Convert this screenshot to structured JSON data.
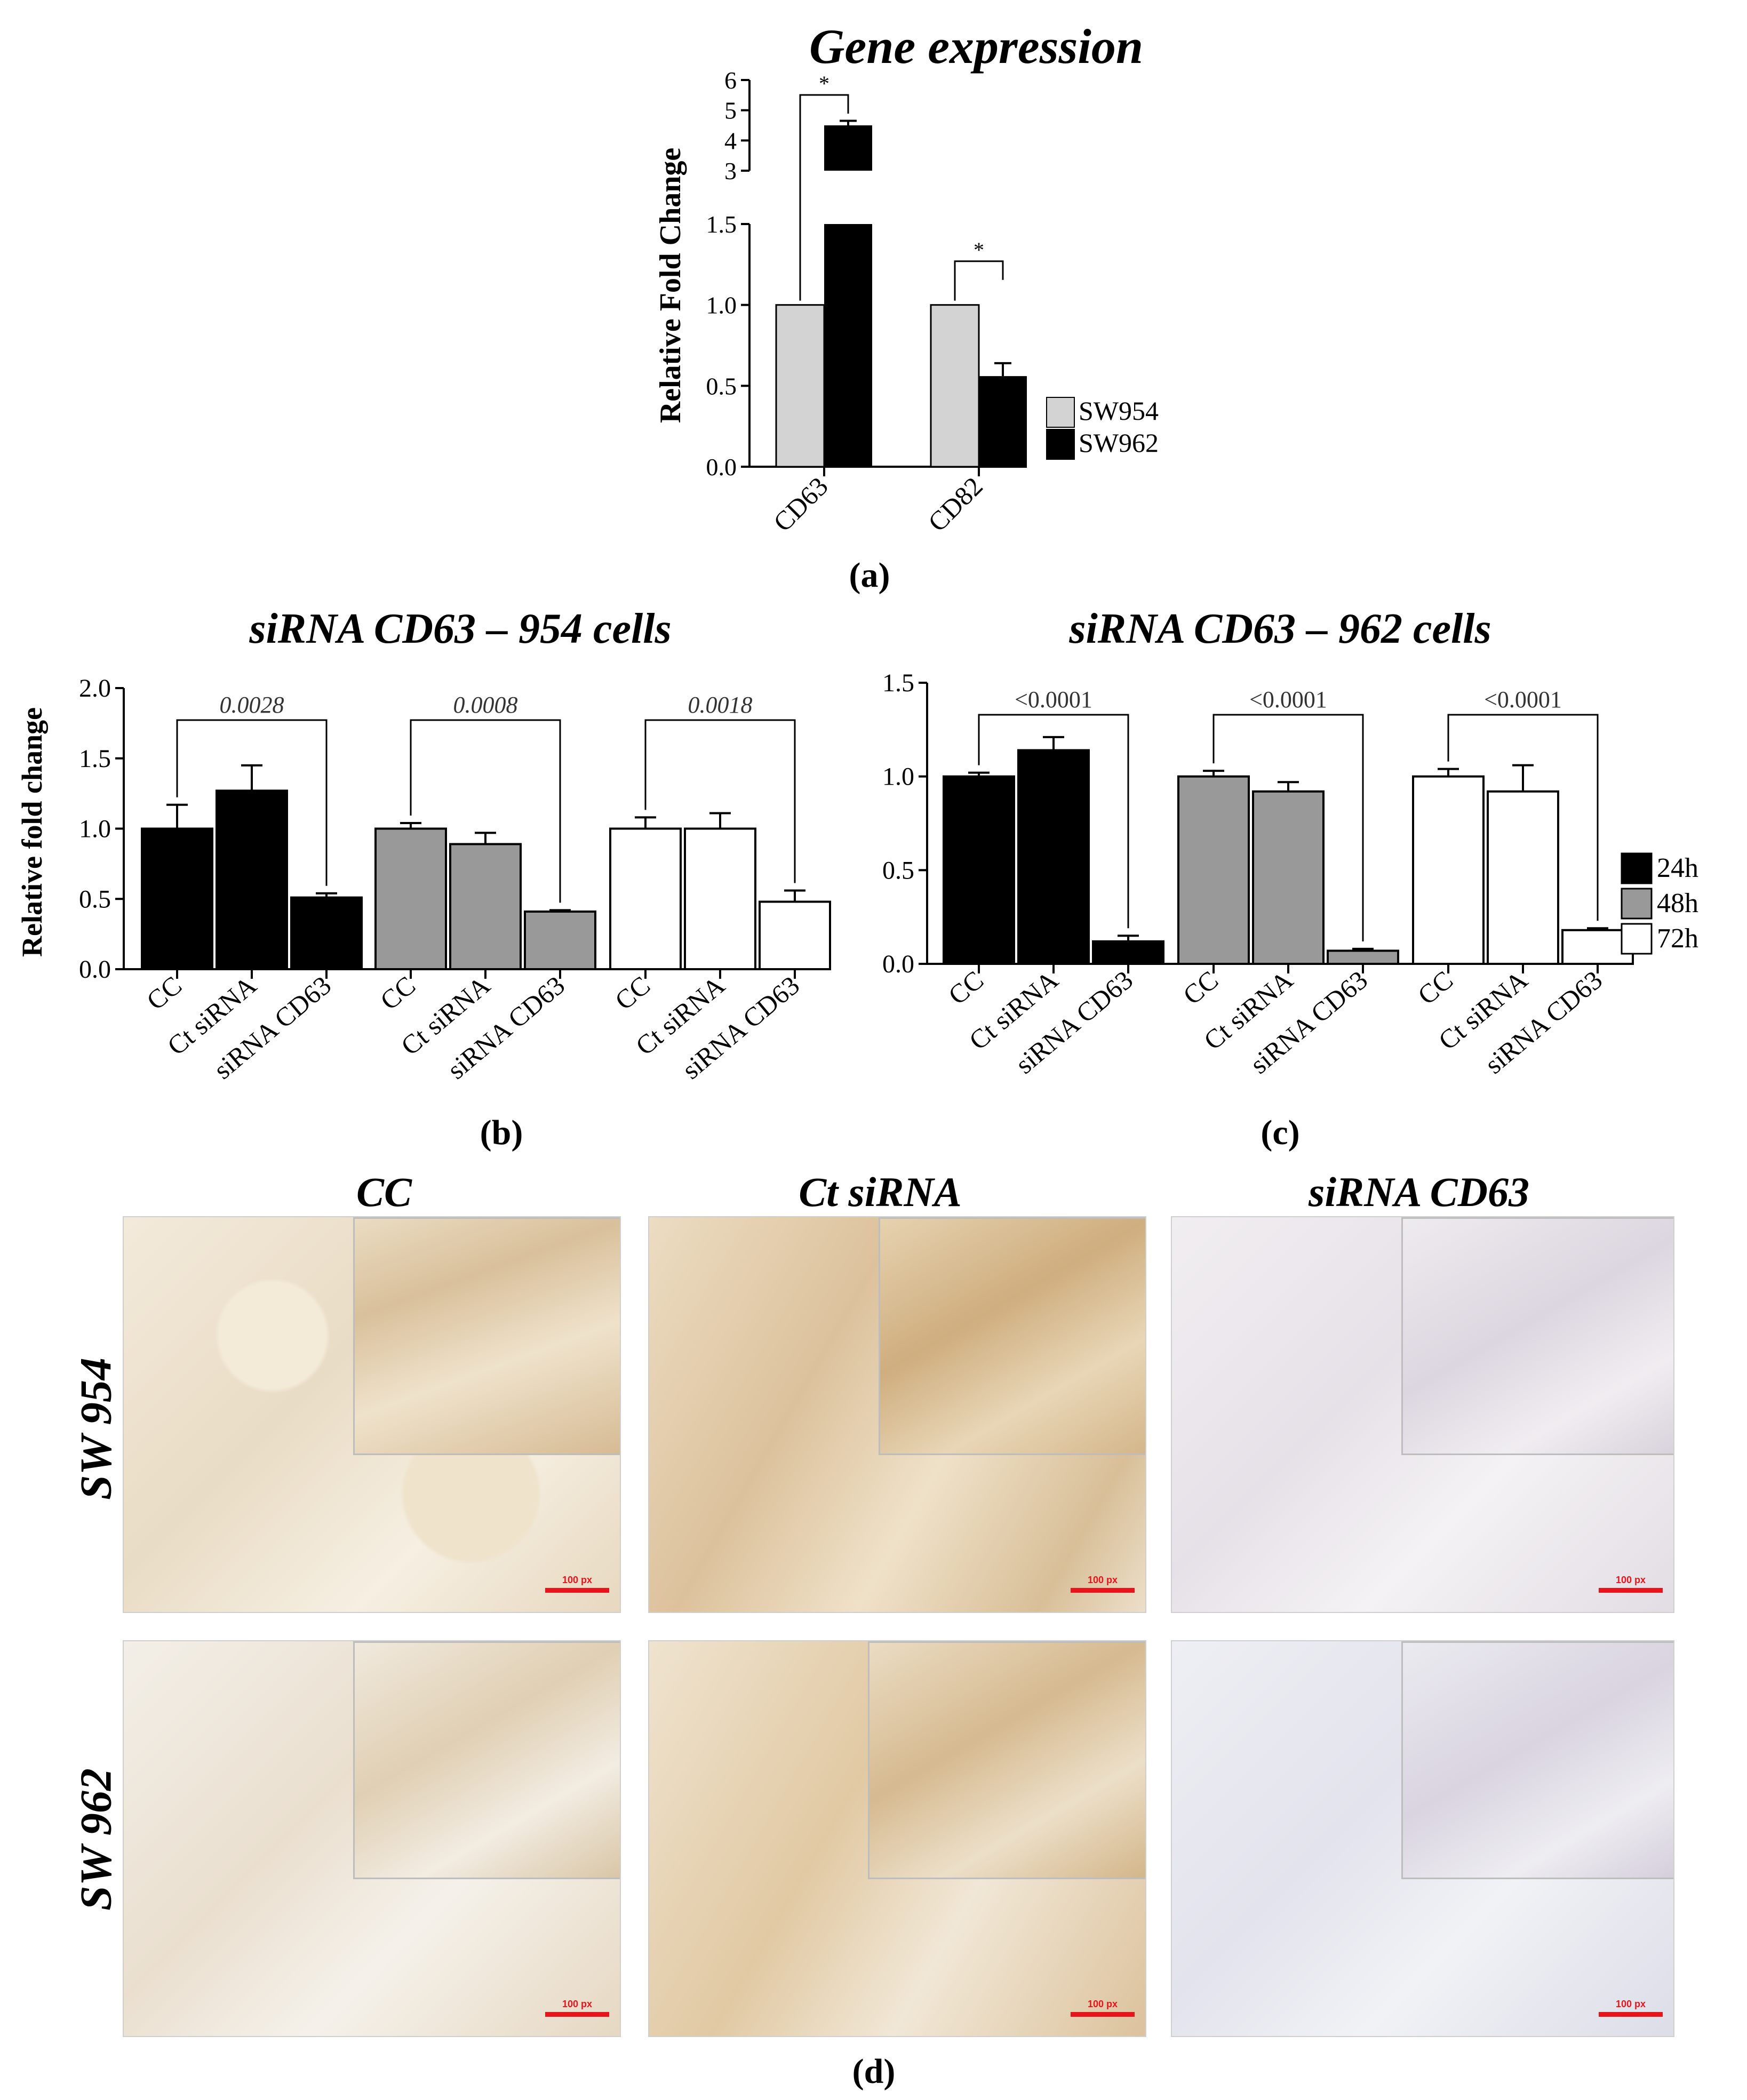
{
  "chart_data": [
    {
      "id": "a",
      "type": "bar",
      "title": "Gene expression",
      "ylabel": "Relative Fold Change",
      "panel_label": "(a)",
      "categories": [
        "CD63",
        "CD82"
      ],
      "series": [
        {
          "name": "SW954",
          "values": [
            1.0,
            1.0
          ],
          "color": "#d3d3d3"
        },
        {
          "name": "SW962",
          "values": [
            4.5,
            0.56
          ],
          "errors": [
            0.15,
            0.08
          ],
          "color": "#000000"
        }
      ],
      "y_broken_axis": true,
      "ylim_lower": [
        0,
        1.5
      ],
      "ylim_upper": [
        3,
        6
      ],
      "yticks_lower": [
        "0.0",
        "0.5",
        "1.0",
        "1.5"
      ],
      "yticks_upper": [
        "3",
        "4",
        "5",
        "6"
      ],
      "significance": [
        "*",
        "*"
      ],
      "legend_position": "right"
    },
    {
      "id": "b",
      "type": "bar",
      "title": "siRNA CD63 – 954 cells",
      "ylabel": "Relative fold change",
      "panel_label": "(b)",
      "categories": [
        "CC",
        "Ct siRNA",
        "siRNA CD63"
      ],
      "ylim": [
        0,
        2.0
      ],
      "yticks": [
        "0.0",
        "0.5",
        "1.0",
        "1.5",
        "2.0"
      ],
      "series": [
        {
          "name": "24h",
          "values": [
            1.0,
            1.27,
            0.51
          ],
          "errors": [
            0.17,
            0.18,
            0.03
          ],
          "color": "#000000"
        },
        {
          "name": "48h",
          "values": [
            1.0,
            0.89,
            0.41
          ],
          "errors": [
            0.04,
            0.08,
            0.01
          ],
          "color": "#999999"
        },
        {
          "name": "72h",
          "values": [
            1.0,
            1.0,
            0.48
          ],
          "errors": [
            0.08,
            0.11,
            0.08
          ],
          "color": "#ffffff"
        }
      ],
      "pvalues": [
        "0.0028",
        "0.0008",
        "0.0018"
      ]
    },
    {
      "id": "c",
      "type": "bar",
      "title": "siRNA CD63 – 962 cells",
      "panel_label": "(c)",
      "categories": [
        "CC",
        "Ct siRNA",
        "siRNA CD63"
      ],
      "ylim": [
        0,
        1.5
      ],
      "yticks": [
        "0.0",
        "0.5",
        "1.0",
        "1.5"
      ],
      "series": [
        {
          "name": "24h",
          "values": [
            1.0,
            1.14,
            0.12
          ],
          "errors": [
            0.02,
            0.07,
            0.03
          ],
          "color": "#000000"
        },
        {
          "name": "48h",
          "values": [
            1.0,
            0.92,
            0.07
          ],
          "errors": [
            0.03,
            0.05,
            0.01
          ],
          "color": "#999999"
        },
        {
          "name": "72h",
          "values": [
            1.0,
            0.92,
            0.18
          ],
          "errors": [
            0.04,
            0.14,
            0.01
          ],
          "color": "#ffffff"
        }
      ],
      "pvalues": [
        "<0.0001",
        "<0.0001",
        "<0.0001"
      ],
      "legend_position": "right"
    }
  ],
  "micrographs": {
    "panel_label": "(d)",
    "columns": [
      "CC",
      "Ct siRNA",
      "siRNA CD63"
    ],
    "rows": [
      "SW 954",
      "SW 962"
    ],
    "scale_bar_text": "100 px"
  }
}
